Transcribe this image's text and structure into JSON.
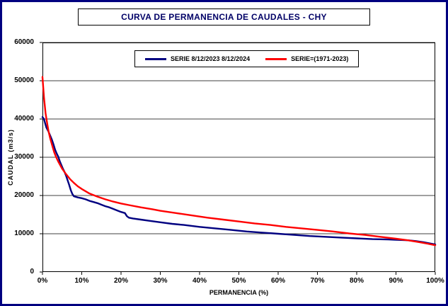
{
  "colors": {
    "frame_border": "#000080",
    "title_text": "#000066",
    "axis": "#000000",
    "grid": "#000000",
    "series1": "#000080",
    "series2": "#FF0000"
  },
  "chart_data": {
    "type": "line",
    "title": "CURVA DE PERMANENCIA DE CAUDALES - CHY",
    "xlabel": "PERMANENCIA (%)",
    "ylabel": "CAUDAL (m3/s)",
    "xlim": [
      0,
      100
    ],
    "ylim": [
      0,
      60000
    ],
    "x_ticks": [
      "0%",
      "10%",
      "20%",
      "30%",
      "40%",
      "50%",
      "60%",
      "70%",
      "80%",
      "90%",
      "100%"
    ],
    "y_ticks": [
      "0",
      "10000",
      "20000",
      "30000",
      "40000",
      "50000",
      "60000"
    ],
    "grid": "horizontal",
    "legend_position": "top-inside",
    "series": [
      {
        "name": "SERIE 8/12/2023 8/12/2024",
        "color": "#000080",
        "points": [
          [
            0,
            40500
          ],
          [
            0.4,
            40000
          ],
          [
            0.7,
            38800
          ],
          [
            1,
            37800
          ],
          [
            1.5,
            36800
          ],
          [
            2,
            35600
          ],
          [
            2.4,
            34600
          ],
          [
            2.8,
            33400
          ],
          [
            3.2,
            32000
          ],
          [
            3.6,
            31000
          ],
          [
            4,
            30200
          ],
          [
            4.4,
            29000
          ],
          [
            4.8,
            28000
          ],
          [
            5.2,
            27000
          ],
          [
            5.6,
            26200
          ],
          [
            6,
            25200
          ],
          [
            6.4,
            24000
          ],
          [
            6.8,
            22800
          ],
          [
            7.2,
            21400
          ],
          [
            7.6,
            20400
          ],
          [
            8,
            19800
          ],
          [
            9,
            19500
          ],
          [
            10,
            19300
          ],
          [
            11,
            19000
          ],
          [
            12,
            18600
          ],
          [
            13,
            18300
          ],
          [
            14,
            18000
          ],
          [
            15,
            17600
          ],
          [
            16,
            17200
          ],
          [
            17,
            16900
          ],
          [
            18,
            16500
          ],
          [
            19,
            16100
          ],
          [
            20,
            15700
          ],
          [
            21,
            15400
          ],
          [
            21.5,
            14600
          ],
          [
            22,
            14200
          ],
          [
            23,
            14000
          ],
          [
            25,
            13700
          ],
          [
            27,
            13400
          ],
          [
            30,
            13000
          ],
          [
            33,
            12600
          ],
          [
            36,
            12300
          ],
          [
            40,
            11800
          ],
          [
            44,
            11400
          ],
          [
            48,
            11000
          ],
          [
            52,
            10600
          ],
          [
            56,
            10300
          ],
          [
            60,
            10000
          ],
          [
            64,
            9700
          ],
          [
            68,
            9400
          ],
          [
            72,
            9200
          ],
          [
            76,
            9000
          ],
          [
            80,
            8800
          ],
          [
            84,
            8600
          ],
          [
            88,
            8500
          ],
          [
            90,
            8400
          ],
          [
            93,
            8300
          ],
          [
            95,
            8100
          ],
          [
            97,
            7800
          ],
          [
            99,
            7400
          ],
          [
            100,
            7200
          ]
        ]
      },
      {
        "name": "SERIE=(1971-2023)",
        "color": "#FF0000",
        "points": [
          [
            0,
            51000
          ],
          [
            0.4,
            45500
          ],
          [
            0.8,
            41500
          ],
          [
            1.2,
            38800
          ],
          [
            1.6,
            36500
          ],
          [
            2,
            34800
          ],
          [
            2.5,
            33000
          ],
          [
            3,
            31300
          ],
          [
            3.5,
            30000
          ],
          [
            4,
            28900
          ],
          [
            5,
            27000
          ],
          [
            6,
            25600
          ],
          [
            7,
            24300
          ],
          [
            8,
            23300
          ],
          [
            9,
            22400
          ],
          [
            10,
            21700
          ],
          [
            12,
            20500
          ],
          [
            14,
            19700
          ],
          [
            16,
            19000
          ],
          [
            18,
            18400
          ],
          [
            20,
            17900
          ],
          [
            22,
            17500
          ],
          [
            25,
            16900
          ],
          [
            28,
            16400
          ],
          [
            30,
            16000
          ],
          [
            34,
            15400
          ],
          [
            38,
            14800
          ],
          [
            42,
            14200
          ],
          [
            46,
            13700
          ],
          [
            50,
            13200
          ],
          [
            54,
            12700
          ],
          [
            58,
            12300
          ],
          [
            62,
            11800
          ],
          [
            66,
            11400
          ],
          [
            70,
            11000
          ],
          [
            74,
            10600
          ],
          [
            78,
            10100
          ],
          [
            82,
            9700
          ],
          [
            86,
            9200
          ],
          [
            90,
            8700
          ],
          [
            93,
            8300
          ],
          [
            96,
            7800
          ],
          [
            98,
            7400
          ],
          [
            100,
            7000
          ]
        ]
      }
    ]
  }
}
